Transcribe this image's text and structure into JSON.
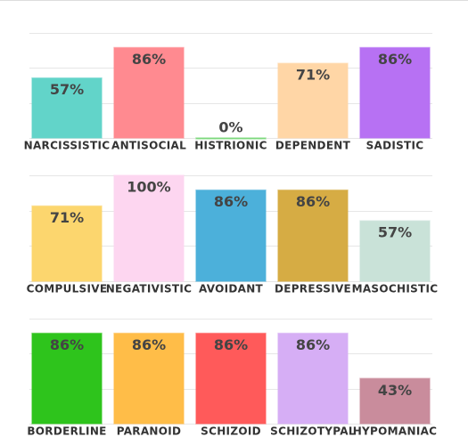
{
  "chart_data": [
    {
      "type": "bar",
      "categories": [
        "NARCISSISTIC",
        "ANTISOCIAL",
        "HISTRIONIC",
        "DEPENDENT",
        "SADISTIC"
      ],
      "values": [
        57,
        86,
        0,
        71,
        86
      ],
      "value_labels": [
        "57%",
        "86%",
        "0%",
        "71%",
        "86%"
      ],
      "colors": [
        "#62d4c9",
        "#ff8a90",
        "#7ed87e",
        "#ffd6a6",
        "#b771f3"
      ],
      "ylim": [
        0,
        100
      ],
      "yticks": [
        0,
        33.3,
        66.7,
        100
      ],
      "grid": true
    },
    {
      "type": "bar",
      "categories": [
        "COMPULSIVE",
        "NEGATIVISTIC",
        "AVOIDANT",
        "DEPRESSIVE",
        "MASOCHISTIC"
      ],
      "values": [
        71,
        100,
        86,
        86,
        57
      ],
      "value_labels": [
        "71%",
        "100%",
        "86%",
        "86%",
        "57%"
      ],
      "colors": [
        "#fcd66e",
        "#fdd6f0",
        "#4cb0da",
        "#d6ac44",
        "#c9e2d8"
      ],
      "ylim": [
        0,
        100
      ],
      "yticks": [
        0,
        33.3,
        66.7,
        100
      ],
      "grid": true
    },
    {
      "type": "bar",
      "categories": [
        "BORDERLINE",
        "PARANOID",
        "SCHIZOID",
        "SCHIZOTYPAL",
        "HYPOMANIAC"
      ],
      "values": [
        86,
        86,
        86,
        86,
        43
      ],
      "value_labels": [
        "86%",
        "86%",
        "86%",
        "86%",
        "43%"
      ],
      "colors": [
        "#2ec41c",
        "#ffbd48",
        "#ff5a5a",
        "#d6aef5",
        "#c98c9c"
      ],
      "ylim": [
        0,
        100
      ],
      "yticks": [
        0,
        33.3,
        66.7,
        100
      ],
      "grid": true
    }
  ]
}
